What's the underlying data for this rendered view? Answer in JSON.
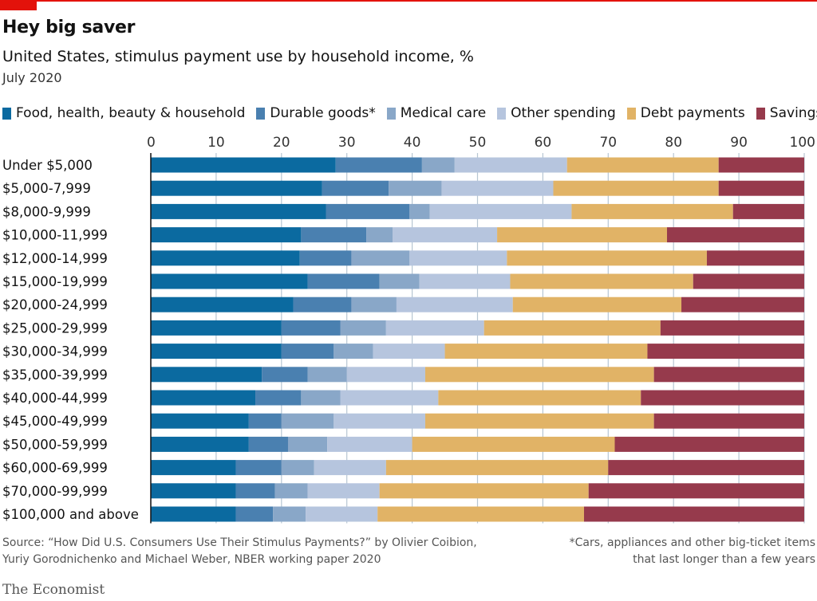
{
  "header": {
    "title": "Hey big saver",
    "subtitle": "United States, stimulus payment use by household income, %",
    "date": "July 2020"
  },
  "footer": {
    "source_line1": "Source: “How Did U.S. Consumers Use Their Stimulus Payments?” by Olivier Coibion,",
    "source_line2": "Yuriy Gorodnichenko and Michael Weber, NBER working paper 2020",
    "note_line1": "*Cars, appliances and other big-ticket items",
    "note_line2": "that last longer than a few years",
    "logo": "The Economist"
  },
  "chart_data": {
    "type": "bar",
    "orientation": "horizontal",
    "stacked": true,
    "title": "Hey big saver",
    "xlabel": "",
    "ylabel": "",
    "xlim": [
      0,
      100
    ],
    "x_ticks": [
      0,
      10,
      20,
      30,
      40,
      50,
      60,
      70,
      80,
      90,
      100
    ],
    "grid": true,
    "legend_position": "top",
    "categories": [
      "Under $5,000",
      "$5,000-7,999",
      "$8,000-9,999",
      "$10,000-11,999",
      "$12,000-14,999",
      "$15,000-19,999",
      "$20,000-24,999",
      "$25,000-29,999",
      "$30,000-34,999",
      "$35,000-39,999",
      "$40,000-44,999",
      "$45,000-49,999",
      "$50,000-59,999",
      "$60,000-69,999",
      "$70,000-99,999",
      "$100,000 and above"
    ],
    "series": [
      {
        "name": "Food, health, beauty & household",
        "color": "#0b6aa0",
        "values": [
          28.3,
          26.2,
          26.8,
          23,
          22.8,
          24,
          21.8,
          20,
          20,
          17,
          16,
          15,
          15,
          13,
          13,
          13
        ]
      },
      {
        "name": "Durable goods*",
        "color": "#4a80b0",
        "values": [
          13.2,
          10.2,
          12.8,
          10,
          7.9,
          11,
          8.9,
          9,
          8,
          7,
          7,
          5,
          6,
          7,
          6,
          5.7
        ]
      },
      {
        "name": "Medical care",
        "color": "#89a7c8",
        "values": [
          5,
          8.1,
          3.1,
          4,
          8.9,
          6.1,
          6.9,
          7,
          6,
          6,
          6,
          8,
          6,
          5,
          5,
          5
        ]
      },
      {
        "name": "Other spending",
        "color": "#b6c5de",
        "values": [
          17.2,
          17.1,
          21.7,
          16,
          14.9,
          13.9,
          17.8,
          15,
          11,
          12,
          15,
          14,
          13,
          11,
          11,
          11
        ]
      },
      {
        "name": "Debt payments",
        "color": "#e1b366",
        "values": [
          23.2,
          25.3,
          24.7,
          26,
          30.6,
          28,
          25.8,
          27,
          31,
          35,
          31,
          35,
          31,
          34,
          32,
          31.6
        ]
      },
      {
        "name": "Savings",
        "color": "#963a4c",
        "values": [
          13.1,
          13.1,
          10.9,
          21,
          14.9,
          17,
          18.8,
          22,
          24,
          23,
          25,
          23,
          29,
          30,
          33,
          33.7
        ]
      }
    ]
  }
}
